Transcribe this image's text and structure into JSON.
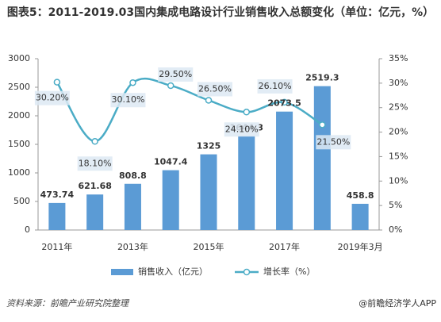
{
  "chart_data": {
    "type": "bar_line",
    "title": "图表5：2011-2019.03国内集成电路设计行业销售收入总额变化（单位：亿元，%）",
    "categories": [
      "2011年",
      null,
      "2013年",
      null,
      "2015年",
      null,
      "2017年",
      null,
      "2019年3月"
    ],
    "series": [
      {
        "name": "销售收入（亿元）",
        "type": "bar",
        "color": "#5b9bd5",
        "values": [
          473.74,
          621.68,
          808.8,
          1047.4,
          1325,
          1644.3,
          2073.5,
          2519.3,
          458.8
        ]
      },
      {
        "name": "增长率（%）",
        "type": "line",
        "axis": "y2",
        "color": "#4bacc6",
        "values": [
          30.2,
          18.1,
          30.1,
          29.5,
          26.5,
          24.1,
          26.1,
          21.5,
          null
        ],
        "value_labels": [
          "30.20%",
          "18.10%",
          "30.10%",
          "29.50%",
          "26.50%",
          "24.10%",
          "26.10%",
          "21.50%",
          null
        ]
      }
    ],
    "ylim": [
      0,
      3000
    ],
    "yticks": [
      0,
      500,
      1000,
      1500,
      2000,
      2500,
      3000
    ],
    "y2lim": [
      0,
      35
    ],
    "y2ticks": [
      {
        "value": 0,
        "label": "0%"
      },
      {
        "value": 5,
        "label": "5%"
      },
      {
        "value": 10,
        "label": "10%"
      },
      {
        "value": 15,
        "label": "15%"
      },
      {
        "value": 20,
        "label": "20%"
      },
      {
        "value": 25,
        "label": "25%"
      },
      {
        "value": 30,
        "label": "30%"
      },
      {
        "value": 35,
        "label": "35%"
      }
    ],
    "legend": "bottom",
    "source": "资料来源：前瞻产业研究院整理",
    "credit": "@前瞻经济学人APP"
  }
}
